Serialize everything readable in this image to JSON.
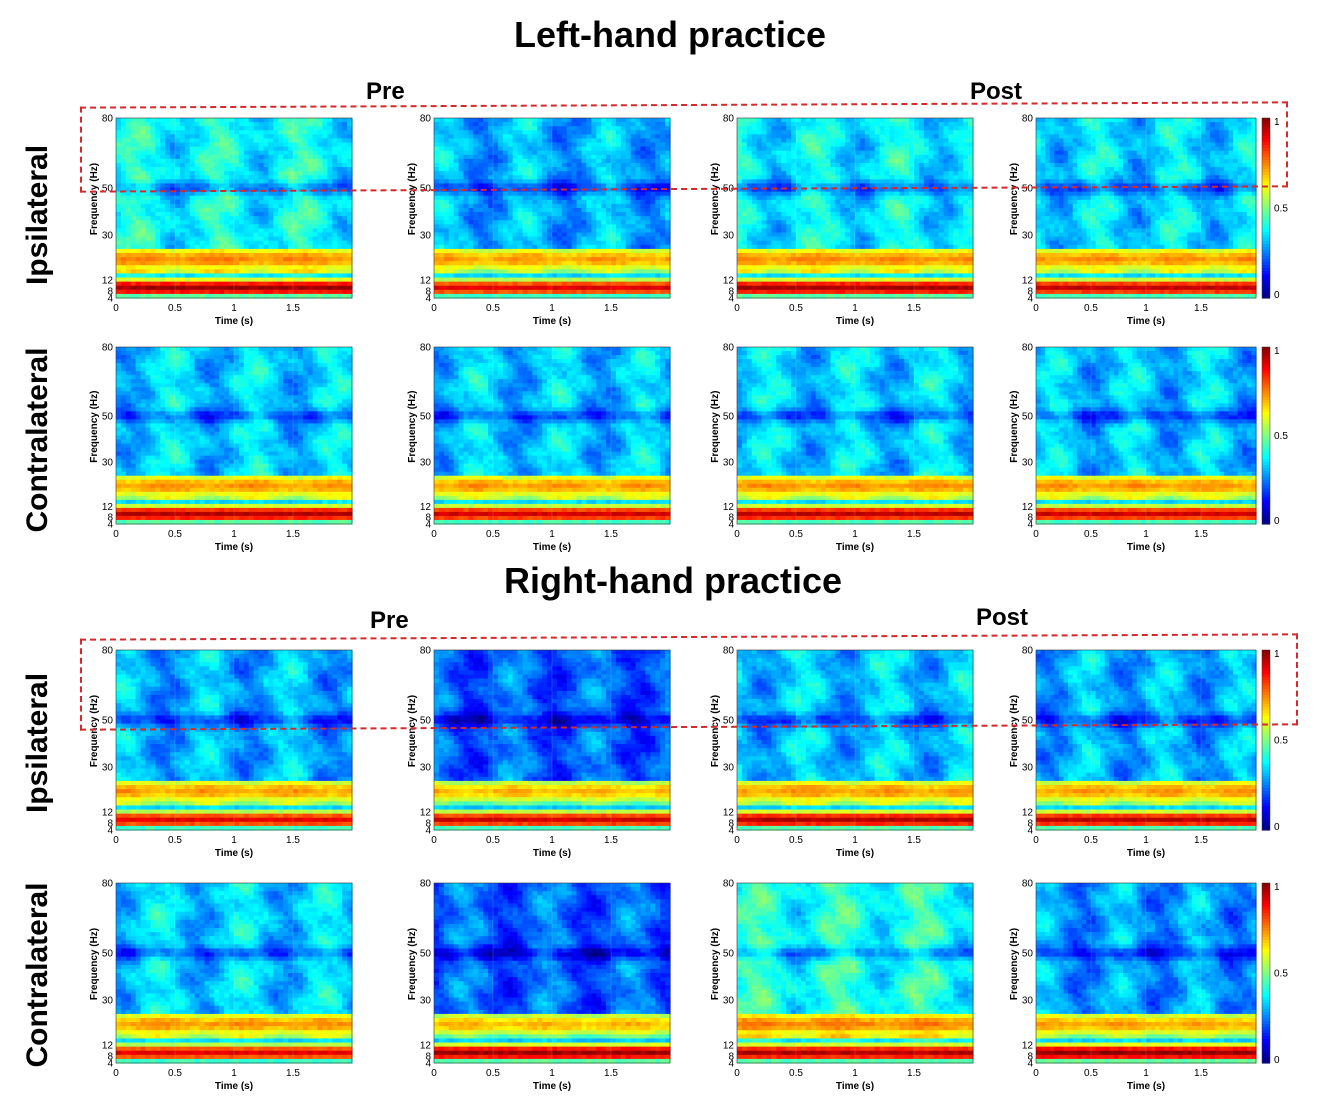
{
  "figure": {
    "sections": [
      {
        "id": "left",
        "title": "Left-hand practice",
        "pre_label": "Pre",
        "post_label": "Post"
      },
      {
        "id": "right",
        "title": "Right-hand practice",
        "pre_label": "Pre",
        "post_label": "Post"
      }
    ],
    "row_labels": {
      "ipsilateral": "Ipsilateral",
      "contralateral": "Contralateral"
    }
  },
  "chart_data": {
    "type": "heatmap",
    "xlabel": "Time (s)",
    "ylabel": "Frequency (Hz)",
    "x_ticks": [
      "0",
      "0.5",
      "1",
      "1.5"
    ],
    "x_tick_values": [
      0,
      0.5,
      1,
      1.5
    ],
    "xlim": [
      0,
      2
    ],
    "y_ticks": [
      "4",
      "8",
      "12",
      "30",
      "50",
      "80"
    ],
    "y_tick_values": [
      4,
      8,
      12,
      30,
      50,
      80
    ],
    "ylim": [
      4,
      80
    ],
    "colorbar": {
      "min": 0,
      "max": 1,
      "ticks": [
        "0",
        "0.5",
        "1"
      ],
      "tick_values": [
        0,
        0.5,
        1
      ],
      "colormap": "jet"
    },
    "panels": [
      {
        "section": "left",
        "row": "Ipsilateral",
        "col": 1,
        "alpha_power": 0.97,
        "high_freq_power": 0.38
      },
      {
        "section": "left",
        "row": "Ipsilateral",
        "col": 2,
        "alpha_power": 0.9,
        "high_freq_power": 0.3
      },
      {
        "section": "left",
        "row": "Ipsilateral",
        "col": 3,
        "alpha_power": 0.96,
        "high_freq_power": 0.36
      },
      {
        "section": "left",
        "row": "Ipsilateral",
        "col": 4,
        "alpha_power": 0.93,
        "high_freq_power": 0.34
      },
      {
        "section": "left",
        "row": "Contralateral",
        "col": 1,
        "alpha_power": 0.95,
        "high_freq_power": 0.33
      },
      {
        "section": "left",
        "row": "Contralateral",
        "col": 2,
        "alpha_power": 0.92,
        "high_freq_power": 0.32
      },
      {
        "section": "left",
        "row": "Contralateral",
        "col": 3,
        "alpha_power": 0.94,
        "high_freq_power": 0.33
      },
      {
        "section": "left",
        "row": "Contralateral",
        "col": 4,
        "alpha_power": 0.92,
        "high_freq_power": 0.32
      },
      {
        "section": "right",
        "row": "Ipsilateral",
        "col": 1,
        "alpha_power": 0.9,
        "high_freq_power": 0.3
      },
      {
        "section": "right",
        "row": "Ipsilateral",
        "col": 2,
        "alpha_power": 0.92,
        "high_freq_power": 0.22
      },
      {
        "section": "right",
        "row": "Ipsilateral",
        "col": 3,
        "alpha_power": 0.95,
        "high_freq_power": 0.32
      },
      {
        "section": "right",
        "row": "Ipsilateral",
        "col": 4,
        "alpha_power": 0.94,
        "high_freq_power": 0.3
      },
      {
        "section": "right",
        "row": "Contralateral",
        "col": 1,
        "alpha_power": 0.9,
        "high_freq_power": 0.33
      },
      {
        "section": "right",
        "row": "Contralateral",
        "col": 2,
        "alpha_power": 0.97,
        "high_freq_power": 0.22
      },
      {
        "section": "right",
        "row": "Contralateral",
        "col": 3,
        "alpha_power": 0.95,
        "high_freq_power": 0.4
      },
      {
        "section": "right",
        "row": "Contralateral",
        "col": 4,
        "alpha_power": 0.98,
        "high_freq_power": 0.28
      }
    ]
  }
}
